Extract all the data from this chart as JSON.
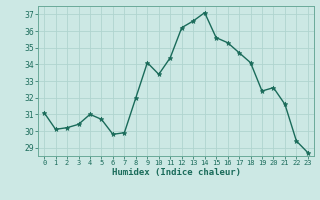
{
  "x": [
    0,
    1,
    2,
    3,
    4,
    5,
    6,
    7,
    8,
    9,
    10,
    11,
    12,
    13,
    14,
    15,
    16,
    17,
    18,
    19,
    20,
    21,
    22,
    23
  ],
  "y": [
    31.1,
    30.1,
    30.2,
    30.4,
    31.0,
    30.7,
    29.8,
    29.9,
    32.0,
    34.1,
    33.4,
    34.4,
    36.2,
    36.6,
    37.1,
    35.6,
    35.3,
    34.7,
    34.1,
    32.4,
    32.6,
    31.6,
    29.4,
    28.7
  ],
  "xlabel": "Humidex (Indice chaleur)",
  "line_color": "#1a6b5a",
  "marker_color": "#1a6b5a",
  "bg_color": "#cce8e4",
  "grid_color": "#b0d4cf",
  "tick_color": "#1a6b5a",
  "spine_color": "#6aaa99",
  "ylim": [
    28.5,
    37.5
  ],
  "xlim": [
    -0.5,
    23.5
  ],
  "yticks": [
    29,
    30,
    31,
    32,
    33,
    34,
    35,
    36,
    37
  ],
  "xticks": [
    0,
    1,
    2,
    3,
    4,
    5,
    6,
    7,
    8,
    9,
    10,
    11,
    12,
    13,
    14,
    15,
    16,
    17,
    18,
    19,
    20,
    21,
    22,
    23
  ]
}
